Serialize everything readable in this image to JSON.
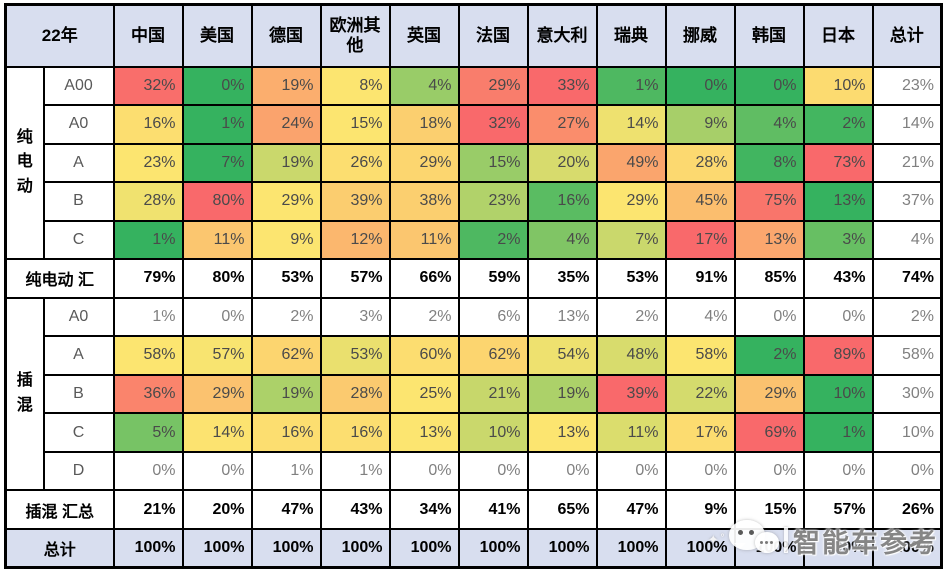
{
  "chart_data": {
    "type": "heatmap",
    "title": "22年",
    "corner_label": "22年",
    "columns": [
      "中国",
      "美国",
      "德国",
      "欧洲其他",
      "英国",
      "法国",
      "意大利",
      "瑞典",
      "挪威",
      "韩国",
      "日本",
      "总计"
    ],
    "groups": [
      {
        "name": "纯电动",
        "rows": [
          {
            "label": "A00",
            "heat": true,
            "values": [
              32,
              0,
              19,
              8,
              4,
              29,
              33,
              1,
              0,
              0,
              10
            ],
            "total": 23
          },
          {
            "label": "A0",
            "heat": true,
            "values": [
              16,
              1,
              24,
              15,
              18,
              32,
              27,
              14,
              9,
              4,
              2
            ],
            "total": 14
          },
          {
            "label": "A",
            "heat": true,
            "values": [
              23,
              7,
              19,
              26,
              29,
              15,
              20,
              49,
              28,
              8,
              73
            ],
            "total": 21
          },
          {
            "label": "B",
            "heat": true,
            "values": [
              28,
              80,
              29,
              39,
              38,
              23,
              16,
              29,
              45,
              75,
              13
            ],
            "total": 37
          },
          {
            "label": "C",
            "heat": true,
            "values": [
              1,
              11,
              9,
              12,
              11,
              2,
              4,
              7,
              17,
              13,
              3
            ],
            "total": 4
          }
        ],
        "summary": {
          "label": "纯电动 汇",
          "values": [
            79,
            80,
            53,
            57,
            66,
            59,
            35,
            53,
            91,
            85,
            43
          ],
          "total": 74
        }
      },
      {
        "name": "插混",
        "rows": [
          {
            "label": "A0",
            "heat": false,
            "values": [
              1,
              0,
              2,
              3,
              2,
              6,
              13,
              2,
              4,
              0,
              0
            ],
            "total": 2
          },
          {
            "label": "A",
            "heat": true,
            "values": [
              58,
              57,
              62,
              53,
              60,
              62,
              54,
              48,
              58,
              2,
              89
            ],
            "total": 58
          },
          {
            "label": "B",
            "heat": true,
            "values": [
              36,
              29,
              19,
              28,
              25,
              21,
              19,
              39,
              22,
              29,
              10
            ],
            "total": 30
          },
          {
            "label": "C",
            "heat": true,
            "values": [
              5,
              14,
              16,
              16,
              13,
              10,
              13,
              11,
              17,
              69,
              1
            ],
            "total": 10
          },
          {
            "label": "D",
            "heat": false,
            "values": [
              0,
              0,
              1,
              1,
              0,
              0,
              0,
              0,
              0,
              0,
              0
            ],
            "total": 0
          }
        ],
        "summary": {
          "label": "插混 汇总",
          "values": [
            21,
            20,
            47,
            43,
            34,
            41,
            65,
            47,
            9,
            15,
            57
          ],
          "total": 26
        }
      }
    ],
    "grand_total": {
      "label": "总计",
      "values": [
        100,
        100,
        100,
        100,
        100,
        100,
        100,
        100,
        100,
        100,
        100
      ],
      "total": 100
    },
    "value_suffix": "%",
    "colors": {
      "header_bg": "#D8DEEF",
      "heat_low": "#35B25F",
      "heat_mid": "#FCE570",
      "heat_high": "#F9696B"
    },
    "legend_position": "none",
    "grid": true
  },
  "watermark": {
    "text": "智能车参考"
  }
}
